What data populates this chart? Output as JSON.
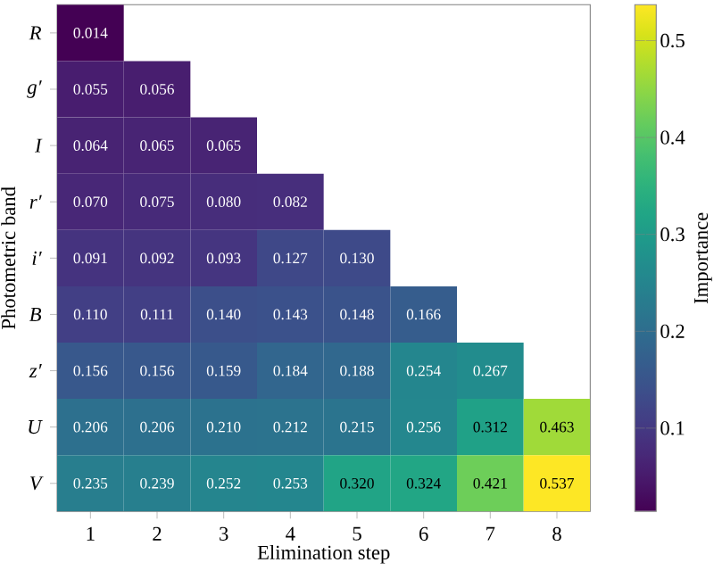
{
  "chart_data": {
    "type": "heatmap",
    "xlabel": "Elimination step",
    "ylabel": "Photometric band",
    "clabel": "Importance",
    "categories": [
      "1",
      "2",
      "3",
      "4",
      "5",
      "6",
      "7",
      "8"
    ],
    "y_categories": [
      "R",
      "g′",
      "I",
      "r′",
      "i′",
      "B",
      "z′",
      "U",
      "V"
    ],
    "cells": [
      [
        0.014,
        null,
        null,
        null,
        null,
        null,
        null,
        null
      ],
      [
        0.055,
        0.056,
        null,
        null,
        null,
        null,
        null,
        null
      ],
      [
        0.064,
        0.065,
        0.065,
        null,
        null,
        null,
        null,
        null
      ],
      [
        0.07,
        0.075,
        0.08,
        0.082,
        null,
        null,
        null,
        null
      ],
      [
        0.091,
        0.092,
        0.093,
        0.127,
        0.13,
        null,
        null,
        null
      ],
      [
        0.11,
        0.111,
        0.14,
        0.143,
        0.148,
        0.166,
        null,
        null
      ],
      [
        0.156,
        0.156,
        0.159,
        0.184,
        0.188,
        0.254,
        0.267,
        null
      ],
      [
        0.206,
        0.206,
        0.21,
        0.212,
        0.215,
        0.256,
        0.312,
        0.463
      ],
      [
        0.235,
        0.239,
        0.252,
        0.253,
        0.32,
        0.324,
        0.421,
        0.537
      ]
    ],
    "cell_labels": [
      [
        "0.014",
        null,
        null,
        null,
        null,
        null,
        null,
        null
      ],
      [
        "0.055",
        "0.056",
        null,
        null,
        null,
        null,
        null,
        null
      ],
      [
        "0.064",
        "0.065",
        "0.065",
        null,
        null,
        null,
        null,
        null
      ],
      [
        "0.070",
        "0.075",
        "0.080",
        "0.082",
        null,
        null,
        null,
        null
      ],
      [
        "0.091",
        "0.092",
        "0.093",
        "0.127",
        "0.130",
        null,
        null,
        null
      ],
      [
        "0.110",
        "0.111",
        "0.140",
        "0.143",
        "0.148",
        "0.166",
        null,
        null
      ],
      [
        "0.156",
        "0.156",
        "0.159",
        "0.184",
        "0.188",
        "0.254",
        "0.267",
        null
      ],
      [
        "0.206",
        "0.206",
        "0.210",
        "0.212",
        "0.215",
        "0.256",
        "0.312",
        "0.463"
      ],
      [
        "0.235",
        "0.239",
        "0.252",
        "0.253",
        "0.320",
        "0.324",
        "0.421",
        "0.537"
      ]
    ],
    "clim": [
      0.014,
      0.537
    ],
    "cticks": [
      0.1,
      0.2,
      0.3,
      0.4,
      0.5
    ],
    "data_labels": true
  }
}
